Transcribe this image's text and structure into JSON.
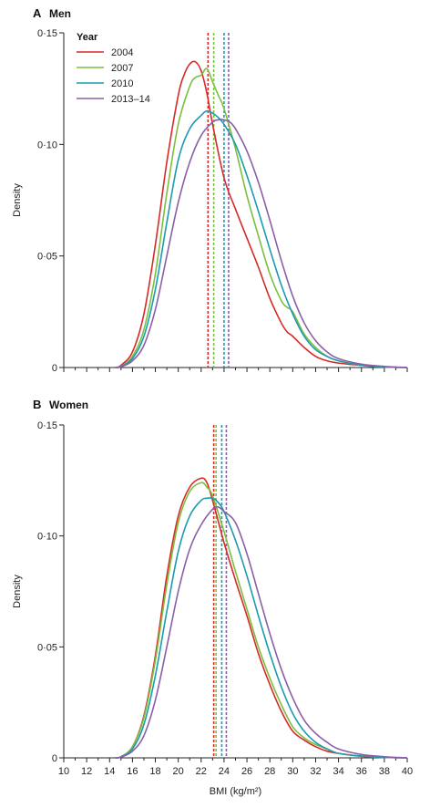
{
  "chart_data": [
    {
      "type": "line",
      "panel_letter": "A",
      "title": "Men",
      "xlabel": "",
      "ylabel": "Density",
      "xlim": [
        10,
        40
      ],
      "ylim": [
        0,
        0.15
      ],
      "xticks": [
        10,
        12,
        14,
        16,
        18,
        20,
        22,
        24,
        26,
        28,
        30,
        32,
        34,
        36,
        38,
        40
      ],
      "xtick_labels_visible": false,
      "yticks": [
        0,
        0.05,
        0.1,
        0.15
      ],
      "ytick_labels": [
        "0",
        "0·05",
        "0·10",
        "0·15"
      ],
      "legend": {
        "title": "Year",
        "position": "top-left",
        "entries": [
          "2004",
          "2007",
          "2010",
          "2013–14"
        ]
      },
      "series": [
        {
          "name": "2004",
          "color": "#d62a28",
          "mean_line_x": 22.6,
          "x": [
            14.5,
            15,
            16,
            17,
            18,
            19,
            20,
            20.5,
            21,
            21.5,
            22,
            22.5,
            23,
            24,
            25,
            26,
            27,
            28,
            29,
            29.5,
            30,
            31,
            32,
            33,
            34,
            36,
            38,
            40
          ],
          "y": [
            0,
            0.001,
            0.007,
            0.024,
            0.055,
            0.092,
            0.122,
            0.131,
            0.136,
            0.137,
            0.133,
            0.123,
            0.109,
            0.085,
            0.071,
            0.058,
            0.045,
            0.031,
            0.02,
            0.016,
            0.014,
            0.009,
            0.005,
            0.003,
            0.002,
            0.001,
            0.0003,
            0
          ]
        },
        {
          "name": "2007",
          "color": "#7cbf3f",
          "mean_line_x": 23.1,
          "x": [
            14.5,
            15,
            16,
            17,
            18,
            19,
            20,
            21,
            21.5,
            22,
            22.5,
            23,
            23.5,
            24,
            25,
            26,
            27,
            28,
            29,
            29.5,
            30,
            31,
            32,
            33,
            34,
            36,
            38,
            40
          ],
          "y": [
            0,
            0.0005,
            0.005,
            0.017,
            0.042,
            0.078,
            0.109,
            0.126,
            0.13,
            0.131,
            0.134,
            0.128,
            0.122,
            0.116,
            0.098,
            0.077,
            0.059,
            0.042,
            0.03,
            0.027,
            0.025,
            0.015,
            0.009,
            0.005,
            0.003,
            0.001,
            0.0003,
            0
          ]
        },
        {
          "name": "2010",
          "color": "#1b9bb0",
          "mean_line_x": 24.0,
          "x": [
            14.5,
            15,
            16,
            17,
            18,
            19,
            20,
            21,
            22,
            22.5,
            23,
            23.5,
            24,
            25,
            26,
            27,
            28,
            29,
            30,
            31,
            32,
            33,
            34,
            36,
            38,
            40
          ],
          "y": [
            0,
            0.0005,
            0.004,
            0.014,
            0.035,
            0.065,
            0.093,
            0.107,
            0.113,
            0.115,
            0.114,
            0.112,
            0.109,
            0.1,
            0.086,
            0.07,
            0.053,
            0.037,
            0.024,
            0.014,
            0.008,
            0.005,
            0.003,
            0.001,
            0.0003,
            0
          ]
        },
        {
          "name": "2013–14",
          "color": "#8b5fa6",
          "mean_line_x": 24.4,
          "x": [
            14.5,
            15,
            16,
            17,
            18,
            19,
            20,
            21,
            22,
            23,
            23.5,
            24,
            24.5,
            25,
            26,
            27,
            28,
            29,
            30,
            31,
            32,
            33,
            34,
            36,
            38,
            40
          ],
          "y": [
            0,
            0.0003,
            0.003,
            0.01,
            0.026,
            0.05,
            0.074,
            0.092,
            0.104,
            0.11,
            0.111,
            0.111,
            0.11,
            0.107,
            0.097,
            0.083,
            0.066,
            0.048,
            0.032,
            0.02,
            0.012,
            0.007,
            0.004,
            0.0015,
            0.0005,
            0
          ]
        }
      ]
    },
    {
      "type": "line",
      "panel_letter": "B",
      "title": "Women",
      "xlabel": "BMI (kg/m²)",
      "ylabel": "Density",
      "xlim": [
        10,
        40
      ],
      "ylim": [
        0,
        0.15
      ],
      "xticks": [
        10,
        12,
        14,
        16,
        18,
        20,
        22,
        24,
        26,
        28,
        30,
        32,
        34,
        36,
        38,
        40
      ],
      "xtick_labels": [
        "10",
        "12",
        "14",
        "16",
        "18",
        "20",
        "22",
        "24",
        "26",
        "28",
        "30",
        "32",
        "34",
        "36",
        "38",
        "40"
      ],
      "yticks": [
        0,
        0.05,
        0.1,
        0.15
      ],
      "ytick_labels": [
        "0",
        "0·05",
        "0·10",
        "0·15"
      ],
      "series": [
        {
          "name": "2004",
          "color": "#d62a28",
          "mean_line_x": 23.1,
          "x": [
            14.5,
            15,
            16,
            17,
            18,
            19,
            20,
            21,
            22,
            22.5,
            23,
            24,
            25,
            26,
            27,
            28,
            29,
            30,
            31,
            32,
            33,
            34,
            36,
            38,
            40
          ],
          "y": [
            0,
            0.0005,
            0.005,
            0.019,
            0.046,
            0.082,
            0.109,
            0.122,
            0.126,
            0.124,
            0.116,
            0.097,
            0.08,
            0.064,
            0.047,
            0.033,
            0.021,
            0.012,
            0.008,
            0.005,
            0.003,
            0.002,
            0.0007,
            0.0002,
            0
          ]
        },
        {
          "name": "2007",
          "color": "#7cbf3f",
          "mean_line_x": 23.3,
          "x": [
            14.5,
            15,
            16,
            17,
            18,
            19,
            20,
            21,
            22,
            22.5,
            23,
            24,
            25,
            26,
            27,
            28,
            29,
            30,
            31,
            32,
            33,
            34,
            36,
            38,
            40
          ],
          "y": [
            0,
            0.0005,
            0.005,
            0.018,
            0.044,
            0.078,
            0.106,
            0.12,
            0.124,
            0.122,
            0.118,
            0.102,
            0.084,
            0.067,
            0.05,
            0.036,
            0.024,
            0.014,
            0.009,
            0.006,
            0.004,
            0.002,
            0.0008,
            0.0002,
            0
          ]
        },
        {
          "name": "2010",
          "color": "#1b9bb0",
          "mean_line_x": 23.8,
          "x": [
            14.5,
            15,
            16,
            17,
            18,
            19,
            20,
            21,
            22,
            22.5,
            23,
            23.5,
            24,
            25,
            26,
            27,
            28,
            29,
            30,
            31,
            32,
            33,
            34,
            36,
            38,
            40
          ],
          "y": [
            0,
            0.0005,
            0.004,
            0.015,
            0.037,
            0.066,
            0.093,
            0.109,
            0.116,
            0.117,
            0.117,
            0.115,
            0.111,
            0.098,
            0.082,
            0.064,
            0.047,
            0.032,
            0.02,
            0.012,
            0.007,
            0.004,
            0.002,
            0.0008,
            0.0002,
            0
          ]
        },
        {
          "name": "2013–14",
          "color": "#8b5fa6",
          "mean_line_x": 24.2,
          "x": [
            14.5,
            15,
            16,
            17,
            18,
            19,
            20,
            21,
            22,
            23,
            23.5,
            24,
            25,
            26,
            27,
            28,
            29,
            30,
            31,
            32,
            33,
            34,
            36,
            38,
            40
          ],
          "y": [
            0,
            0.0003,
            0.003,
            0.01,
            0.026,
            0.05,
            0.075,
            0.094,
            0.105,
            0.112,
            0.113,
            0.111,
            0.106,
            0.092,
            0.074,
            0.056,
            0.04,
            0.027,
            0.017,
            0.011,
            0.007,
            0.004,
            0.0015,
            0.0005,
            0
          ]
        }
      ]
    }
  ]
}
